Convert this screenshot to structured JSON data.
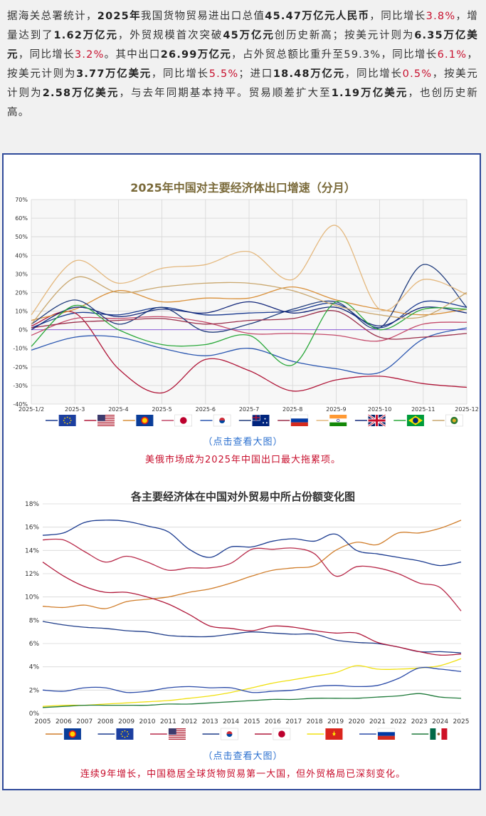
{
  "intro": {
    "segments": [
      {
        "t": "据海关总署统计，",
        "s": ""
      },
      {
        "t": "2025年",
        "s": "b"
      },
      {
        "t": "我国货物贸易进出口总值",
        "s": ""
      },
      {
        "t": "45.47万亿元人民币",
        "s": "b"
      },
      {
        "t": "，同比增长",
        "s": ""
      },
      {
        "t": "3.8%",
        "s": "red"
      },
      {
        "t": "，增量达到了",
        "s": ""
      },
      {
        "t": "1.62万亿元",
        "s": "b"
      },
      {
        "t": "，外贸规模首次突破",
        "s": ""
      },
      {
        "t": "45万亿元",
        "s": "b"
      },
      {
        "t": "创历史新高；按美元计则为",
        "s": ""
      },
      {
        "t": "6.35万亿美元",
        "s": "b"
      },
      {
        "t": "，同比增长",
        "s": ""
      },
      {
        "t": "3.2%",
        "s": "red"
      },
      {
        "t": "。其中出口",
        "s": ""
      },
      {
        "t": "26.99万亿元",
        "s": "b"
      },
      {
        "t": "，占外贸总额比重升至",
        "s": ""
      },
      {
        "t": "59.3%",
        "s": ""
      },
      {
        "t": "，同比增长",
        "s": ""
      },
      {
        "t": "6.1%",
        "s": "red"
      },
      {
        "t": "，按美元计则为",
        "s": ""
      },
      {
        "t": "3.77万亿美元",
        "s": "b"
      },
      {
        "t": "，同比增长",
        "s": ""
      },
      {
        "t": "5.5%",
        "s": "red"
      },
      {
        "t": "；进口",
        "s": ""
      },
      {
        "t": "18.48万亿元",
        "s": "b"
      },
      {
        "t": "，同比增长",
        "s": ""
      },
      {
        "t": "0.5%",
        "s": "red"
      },
      {
        "t": "，按美元计则为",
        "s": ""
      },
      {
        "t": "2.58万亿美元",
        "s": "b"
      },
      {
        "t": "，与去年同期基本持平。贸易顺差扩大至",
        "s": ""
      },
      {
        "t": "1.19万亿美元",
        "s": "b"
      },
      {
        "t": "，也创历史新高。",
        "s": ""
      }
    ]
  },
  "links": {
    "view_large_1": "（点击查看大图）",
    "view_large_2": "（点击查看大图）"
  },
  "captions": {
    "caption_1": "美俄市场成为2025年中国出口最大拖累项。",
    "caption_2": "连续9年增长，中国稳居全球货物贸易第一大国，但外贸格局已深刻变化。"
  },
  "chart_data": [
    {
      "type": "line",
      "title": "2025年中国对主要经济体出口增速（分月）",
      "categories": [
        "2025-1/2",
        "2025-3",
        "2025-4",
        "2025-5",
        "2025-6",
        "2025-7",
        "2025-8",
        "2025-9",
        "2025-10",
        "2025-11",
        "2025-12"
      ],
      "ylim": [
        -40,
        70
      ],
      "yticks": [
        "-40%",
        "-30%",
        "-20%",
        "-10%",
        "0%",
        "10%",
        "20%",
        "30%",
        "40%",
        "50%",
        "60%",
        "70%"
      ],
      "legend_icons": [
        "eu-flag",
        "us-flag",
        "asean-flag",
        "japan-flag",
        "korea-flag",
        "australia-flag",
        "russia-flag",
        "india-flag",
        "uk-flag",
        "brazil-flag",
        "africa-flag"
      ],
      "series": [
        {
          "name": "欧盟",
          "color": "#1a3a8f",
          "values": [
            1,
            9,
            8,
            12,
            8,
            9,
            10,
            14,
            1,
            15,
            12
          ]
        },
        {
          "name": "美国",
          "color": "#b0183a",
          "values": [
            2,
            9,
            -21,
            -34,
            -16,
            -22,
            -33,
            -27,
            -25,
            -29,
            -31
          ]
        },
        {
          "name": "东盟",
          "color": "#d9903a",
          "values": [
            5,
            11,
            21,
            15,
            17,
            17,
            23,
            16,
            11,
            8,
            11
          ]
        },
        {
          "name": "日本",
          "color": "#c44a6a",
          "values": [
            -3,
            6,
            6,
            7,
            4,
            -2,
            -2,
            -3,
            -6,
            3,
            4
          ]
        },
        {
          "name": "韩国",
          "color": "#2a56b0",
          "values": [
            -11,
            -4,
            -4,
            -10,
            -14,
            -10,
            -17,
            -21,
            -23,
            -5,
            1
          ]
        },
        {
          "name": "澳大利亚",
          "color": "#203c7c",
          "values": [
            3,
            16,
            3,
            12,
            -1,
            3,
            11,
            15,
            1,
            35,
            12
          ]
        },
        {
          "name": "俄罗斯",
          "color": "#9a2e4a",
          "values": [
            1,
            4,
            5,
            6,
            3,
            5,
            6,
            10,
            -4,
            -4,
            -2
          ]
        },
        {
          "name": "印度",
          "color": "#e4b87e",
          "values": [
            8,
            37,
            25,
            33,
            35,
            42,
            27,
            56,
            11,
            27,
            19
          ]
        },
        {
          "name": "英国",
          "color": "#14287a",
          "values": [
            0,
            12,
            7,
            11,
            9,
            15,
            9,
            12,
            2,
            12,
            9
          ]
        },
        {
          "name": "巴西",
          "color": "#2aa83a",
          "values": [
            -9,
            13,
            0,
            -8,
            -8,
            -3,
            -19,
            15,
            0,
            11,
            11
          ]
        },
        {
          "name": "非洲",
          "color": "#c9a76e",
          "values": [
            3,
            28,
            20,
            23,
            25,
            25,
            21,
            13,
            8,
            7,
            20
          ]
        }
      ]
    },
    {
      "type": "line",
      "title": "各主要经济体在中国对外贸易中所占份额变化图",
      "categories": [
        "2005",
        "2006",
        "2007",
        "2008",
        "2009",
        "2010",
        "2011",
        "2012",
        "2013",
        "2014",
        "2015",
        "2016",
        "2017",
        "2018",
        "2019",
        "2020",
        "2021",
        "2022",
        "2023",
        "2024",
        "2025"
      ],
      "ylim": [
        0,
        18
      ],
      "yticks": [
        "0%",
        "2%",
        "4%",
        "6%",
        "8%",
        "10%",
        "12%",
        "14%",
        "16%",
        "18%"
      ],
      "legend_icons": [
        "asean-flag",
        "eu-flag",
        "us-flag",
        "korea-flag",
        "japan-flag",
        "vietnam-flag",
        "russia-flag",
        "mexico-flag"
      ],
      "series": [
        {
          "name": "东盟",
          "color": "#d07d2a",
          "values": [
            9.2,
            9.1,
            9.3,
            9.0,
            9.6,
            9.8,
            10.0,
            10.4,
            10.7,
            11.2,
            11.8,
            12.3,
            12.5,
            12.7,
            14.0,
            14.7,
            14.5,
            15.5,
            15.5,
            15.9,
            16.6
          ]
        },
        {
          "name": "欧盟",
          "color": "#1a3a8f",
          "values": [
            15.3,
            15.5,
            16.4,
            16.6,
            16.5,
            16.1,
            15.6,
            14.1,
            13.4,
            14.3,
            14.3,
            14.8,
            15.0,
            14.8,
            15.4,
            14.0,
            13.7,
            13.4,
            13.1,
            12.7,
            13.0
          ]
        },
        {
          "name": "美国",
          "color": "#b82a4a",
          "values": [
            14.9,
            14.9,
            13.9,
            13.0,
            13.5,
            13.0,
            12.3,
            12.5,
            12.5,
            12.9,
            14.1,
            14.1,
            14.2,
            13.7,
            11.8,
            12.6,
            12.5,
            12.0,
            11.2,
            10.8,
            8.8
          ]
        },
        {
          "name": "韩国",
          "color": "#1f3d8a",
          "values": [
            7.9,
            7.6,
            7.4,
            7.3,
            7.1,
            7.0,
            6.7,
            6.6,
            6.6,
            6.8,
            7.0,
            6.9,
            6.8,
            6.8,
            6.3,
            6.1,
            6.0,
            5.7,
            5.3,
            5.3,
            5.2
          ]
        },
        {
          "name": "日本",
          "color": "#b0183a",
          "values": [
            13.0,
            11.8,
            10.9,
            10.4,
            10.4,
            10.0,
            9.4,
            8.5,
            7.5,
            7.3,
            7.1,
            7.5,
            7.4,
            7.1,
            6.9,
            6.9,
            6.1,
            5.7,
            5.3,
            5.0,
            5.1
          ]
        },
        {
          "name": "越南",
          "color": "#f0e010",
          "values": [
            0.6,
            0.7,
            0.7,
            0.8,
            0.9,
            1.0,
            1.1,
            1.3,
            1.5,
            1.8,
            2.2,
            2.6,
            2.9,
            3.2,
            3.5,
            4.1,
            3.8,
            3.8,
            3.9,
            4.1,
            4.7
          ]
        },
        {
          "name": "俄罗斯",
          "color": "#2a4aa8",
          "values": [
            2.0,
            1.9,
            2.2,
            2.2,
            1.8,
            1.9,
            2.2,
            2.3,
            2.2,
            2.2,
            1.8,
            1.9,
            2.0,
            2.3,
            2.4,
            2.3,
            2.4,
            3.0,
            3.9,
            3.8,
            3.6
          ]
        },
        {
          "name": "墨西哥",
          "color": "#1f7a3a",
          "values": [
            0.5,
            0.6,
            0.7,
            0.7,
            0.7,
            0.7,
            0.8,
            0.8,
            0.9,
            1.0,
            1.1,
            1.2,
            1.2,
            1.3,
            1.3,
            1.3,
            1.4,
            1.5,
            1.7,
            1.4,
            1.3
          ]
        }
      ]
    }
  ]
}
